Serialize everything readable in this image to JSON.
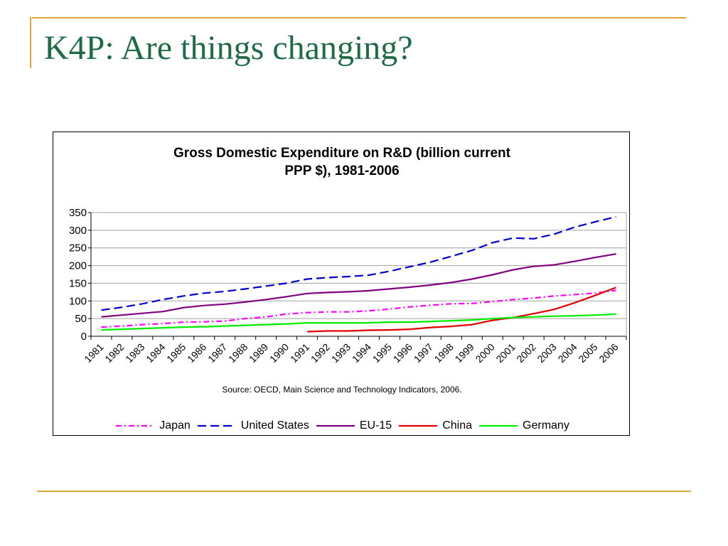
{
  "slide": {
    "title": "K4P: Are things changing?"
  },
  "colors": {
    "accent_bar": "#dba733",
    "title_green": "#1e6b45"
  },
  "chart_data": {
    "type": "line",
    "title_line1": "Gross Domestic Expenditure on R&D (billion current",
    "title_line2": "PPP $), 1981-2006",
    "source": "Source: OECD, Main Science and Technology Indicators, 2006.",
    "x": [
      "1981",
      "1982",
      "1983",
      "1984",
      "1985",
      "1986",
      "1987",
      "1988",
      "1989",
      "1990",
      "1991",
      "1992",
      "1993",
      "1994",
      "1995",
      "1996",
      "1997",
      "1998",
      "1999",
      "2000",
      "2001",
      "2002",
      "2003",
      "2004",
      "2005",
      "2006"
    ],
    "ylim": [
      0,
      350
    ],
    "yticks": [
      0,
      50,
      100,
      150,
      200,
      250,
      300,
      350
    ],
    "grid": true,
    "legend_position": "bottom",
    "series": [
      {
        "name": "Japan",
        "color": "#ff00ff",
        "dash": "dash-dot",
        "values": [
          26,
          29,
          33,
          36,
          40,
          41,
          43,
          50,
          55,
          63,
          67,
          69,
          69,
          72,
          77,
          83,
          88,
          92,
          93,
          98,
          104,
          108,
          114,
          118,
          122,
          130
        ]
      },
      {
        "name": "United States",
        "color": "#0000d0",
        "dash": "dash",
        "values": [
          74,
          82,
          92,
          104,
          114,
          122,
          127,
          134,
          142,
          150,
          162,
          166,
          169,
          173,
          184,
          197,
          210,
          226,
          243,
          265,
          278,
          276,
          289,
          309,
          324,
          338
        ]
      },
      {
        "name": "EU-15",
        "color": "#800080",
        "dash": "solid",
        "values": [
          55,
          60,
          65,
          70,
          81,
          87,
          91,
          97,
          104,
          112,
          121,
          124,
          126,
          129,
          134,
          139,
          145,
          152,
          162,
          174,
          188,
          198,
          202,
          212,
          223,
          233
        ]
      },
      {
        "name": "China",
        "color": "#e00000",
        "dash": "solid",
        "values": [
          null,
          null,
          null,
          null,
          null,
          null,
          null,
          null,
          null,
          null,
          13,
          15,
          15,
          17,
          18,
          20,
          25,
          28,
          33,
          45,
          53,
          64,
          76,
          95,
          116,
          138
        ]
      },
      {
        "name": "Germany",
        "color": "#00ee00",
        "dash": "solid",
        "values": [
          18,
          20,
          22,
          24,
          26,
          27,
          29,
          31,
          33,
          35,
          38,
          38,
          38,
          38,
          40,
          40,
          42,
          44,
          46,
          50,
          53,
          55,
          57,
          58,
          60,
          63
        ]
      }
    ]
  }
}
